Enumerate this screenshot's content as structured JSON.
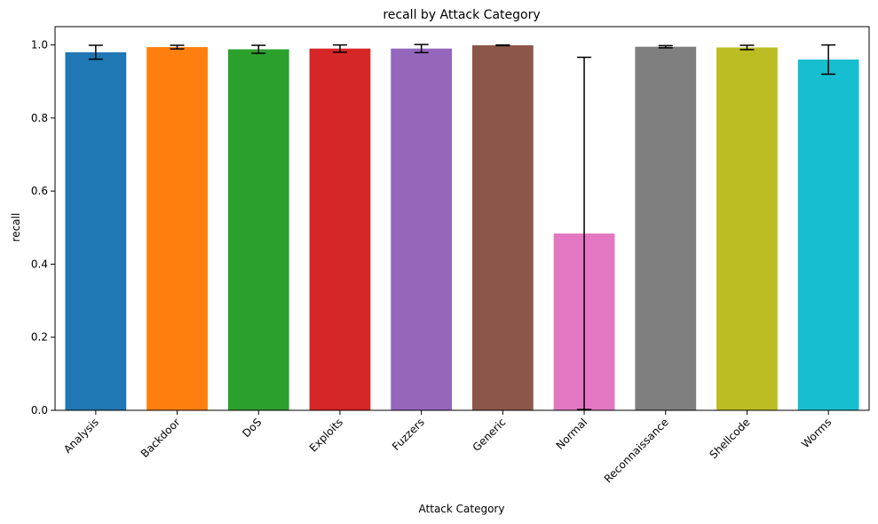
{
  "chart_data": {
    "type": "bar",
    "title": "recall by Attack Category",
    "xlabel": "Attack Category",
    "ylabel": "recall",
    "ylim": [
      0,
      1.05
    ],
    "yticks": [
      0.0,
      0.2,
      0.4,
      0.6,
      0.8,
      1.0
    ],
    "ytick_labels": [
      "0.0",
      "0.2",
      "0.4",
      "0.6",
      "0.8",
      "1.0"
    ],
    "grid": false,
    "categories": [
      "Analysis",
      "Backdoor",
      "DoS",
      "Exploits",
      "Fuzzers",
      "Generic",
      "Normal",
      "Reconnaissance",
      "Shellcode",
      "Worms"
    ],
    "values": [
      0.98,
      0.994,
      0.988,
      0.99,
      0.99,
      0.999,
      0.484,
      0.995,
      0.993,
      0.96
    ],
    "errors": [
      0.019,
      0.005,
      0.011,
      0.01,
      0.011,
      0.001,
      0.482,
      0.003,
      0.006,
      0.04
    ],
    "colors": [
      "#1f77b4",
      "#ff7f0e",
      "#2ca02c",
      "#d62728",
      "#9467bd",
      "#8c564b",
      "#e377c2",
      "#7f7f7f",
      "#bcbd22",
      "#17becf"
    ],
    "tick_label_rotation": 45
  }
}
